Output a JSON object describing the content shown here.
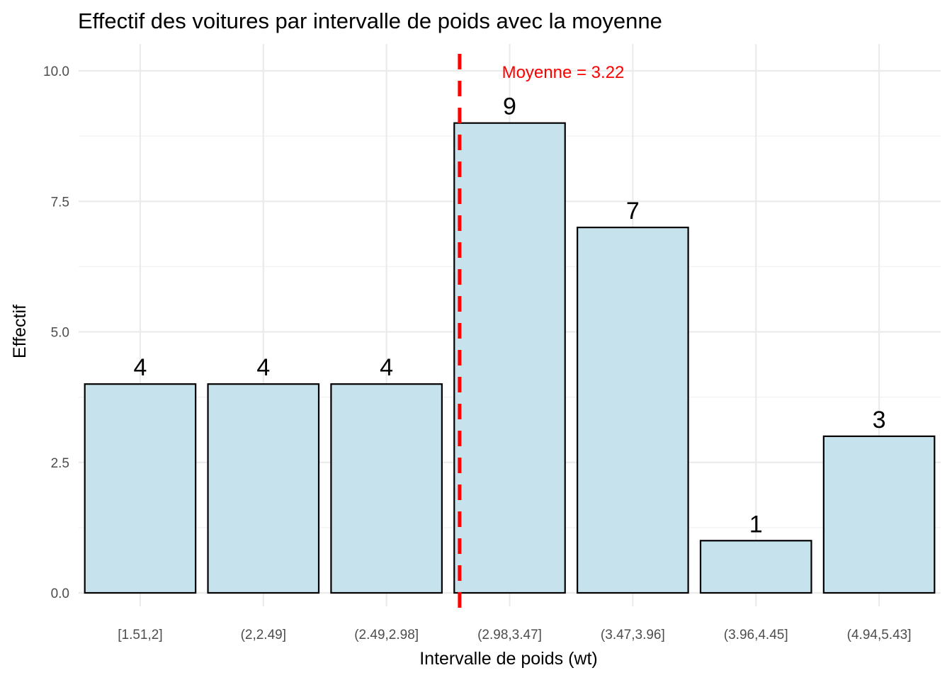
{
  "chart_data": {
    "type": "bar",
    "title": "Effectif des voitures par intervalle de poids avec la moyenne",
    "xlabel": "Intervalle de poids (wt)",
    "ylabel": "Effectif",
    "categories": [
      "[1.51,2]",
      "(2,2.49]",
      "(2.49,2.98]",
      "(2.98,3.47]",
      "(3.47,3.96]",
      "(3.96,4.45]",
      "(4.94,5.43]"
    ],
    "values": [
      4,
      4,
      4,
      9,
      7,
      1,
      3
    ],
    "data_labels": [
      "4",
      "4",
      "4",
      "9",
      "7",
      "1",
      "3"
    ],
    "ylim": [
      0,
      10
    ],
    "yticks": [
      0,
      2.5,
      5,
      7.5,
      10
    ],
    "ytick_labels": [
      "0.0",
      "2.5",
      "5.0",
      "7.5",
      "10.0"
    ],
    "grid": true,
    "bar_fill": "#c6e2ed",
    "bar_stroke": "#000000",
    "mean_line": {
      "value": 3.22,
      "label": "Moyenne = 3.22",
      "color": "#ff0000",
      "style": "dashed"
    }
  }
}
